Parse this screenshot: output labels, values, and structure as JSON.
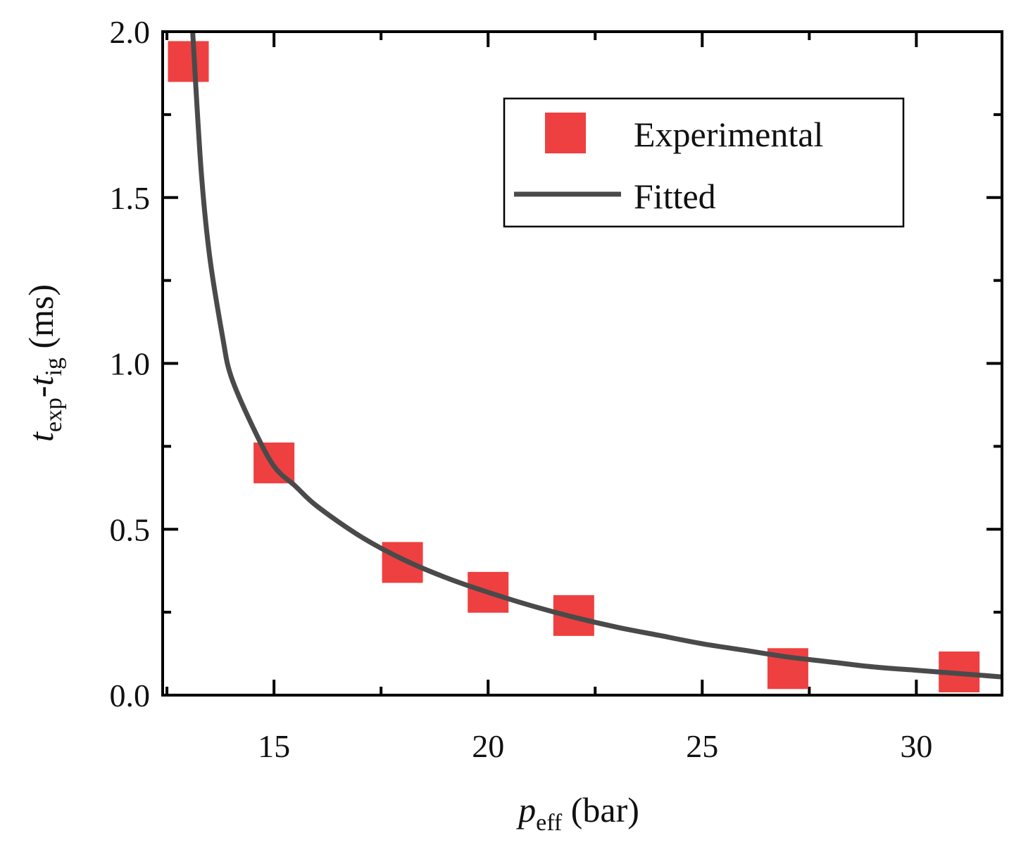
{
  "chart_data": {
    "type": "scatter",
    "title": "",
    "xlabel": {
      "main": "p",
      "sub": "eff",
      "unit": " (bar)"
    },
    "ylabel": {
      "t1": "t",
      "sub1": "exp",
      "dash": "-",
      "t2": "t",
      "sub2": "ig",
      "unit": " (ms)"
    },
    "xlim": [
      12.4,
      32.0
    ],
    "ylim": [
      0.0,
      2.0
    ],
    "xticks": [
      15,
      20,
      25,
      30
    ],
    "xtick_labels": [
      "15",
      "20",
      "25",
      "30"
    ],
    "xminor": [
      12.5,
      17.5,
      22.5,
      27.5
    ],
    "yticks": [
      0.0,
      0.5,
      1.0,
      1.5,
      2.0
    ],
    "ytick_labels": [
      "0.0",
      "0.5",
      "1.0",
      "1.5",
      "2.0"
    ],
    "yminor": [
      0.25,
      0.75,
      1.25,
      1.75
    ],
    "series": [
      {
        "name": "Experimental",
        "kind": "markers",
        "marker": "square",
        "color": "#ee4040",
        "x": [
          13.0,
          15.0,
          18.0,
          20.0,
          22.0,
          27.0,
          31.0
        ],
        "y": [
          1.91,
          0.7,
          0.4,
          0.31,
          0.24,
          0.08,
          0.07
        ]
      },
      {
        "name": "Fitted",
        "kind": "line",
        "color": "#4a4a4a",
        "x": [
          13.1,
          13.3,
          13.5,
          13.8,
          14.0,
          14.5,
          15.0,
          15.5,
          16.0,
          17.0,
          18.0,
          19.0,
          20.0,
          21.0,
          22.0,
          23.0,
          24.0,
          25.0,
          26.0,
          27.0,
          28.0,
          29.0,
          30.0,
          31.0,
          32.0
        ],
        "y": [
          2.0,
          1.58,
          1.32,
          1.08,
          0.96,
          0.81,
          0.69,
          0.63,
          0.57,
          0.48,
          0.41,
          0.355,
          0.31,
          0.27,
          0.235,
          0.205,
          0.18,
          0.155,
          0.135,
          0.115,
          0.1,
          0.085,
          0.075,
          0.065,
          0.055
        ]
      }
    ],
    "legend": {
      "position": "top-right",
      "entries": [
        "Experimental",
        "Fitted"
      ]
    }
  }
}
